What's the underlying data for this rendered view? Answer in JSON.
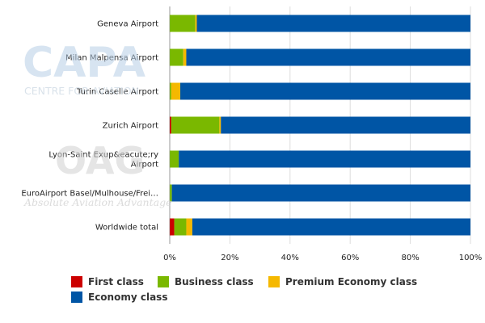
{
  "watermark": {
    "logo1": "CAPA",
    "logo1_sub": "CENTRE FOR AVIATION",
    "logo2": "OAG",
    "logo2_sub": "Absolute Aviation Advantage"
  },
  "chart_data": {
    "type": "bar",
    "orientation": "horizontal",
    "stacked": true,
    "categories": [
      "Geneva Airport",
      "Milan Malpensa Airport",
      "Turin Caselle Airport",
      "Zurich Airport",
      "Lyon-Saint Exup&eacute;ry Airport",
      "EuroAirport Basel/Mulhouse/Frei…",
      "Worldwide total"
    ],
    "category_lines": [
      [
        "Geneva Airport"
      ],
      [
        "Milan Malpensa Airport"
      ],
      [
        "Turin Caselle Airport"
      ],
      [
        "Zurich Airport"
      ],
      [
        "Lyon-Saint Exup&eacute;ry",
        "Airport"
      ],
      [
        "EuroAirport Basel/Mulhouse/Frei…"
      ],
      [
        "Worldwide total"
      ]
    ],
    "series": [
      {
        "name": "First class",
        "color": "#cc0000",
        "values": [
          0,
          0,
          0,
          0.5,
          0,
          0,
          1.5
        ]
      },
      {
        "name": "Business class",
        "color": "#7ab800",
        "values": [
          8.5,
          4.5,
          0.5,
          16.0,
          3.0,
          0.7,
          4.0
        ]
      },
      {
        "name": "Premium Economy class",
        "color": "#f5b800",
        "values": [
          0.5,
          1.0,
          3.0,
          0.5,
          0,
          0,
          2.0
        ]
      },
      {
        "name": "Economy class",
        "color": "#0055a5",
        "values": [
          91.0,
          94.5,
          96.5,
          83.0,
          97.0,
          99.3,
          92.5
        ]
      }
    ],
    "xlim": [
      0,
      100
    ],
    "xticks": [
      0,
      20,
      40,
      60,
      80,
      100
    ],
    "xtick_labels": [
      "0%",
      "20%",
      "40%",
      "60%",
      "80%",
      "100%"
    ],
    "grid": true,
    "legend_position": "bottom"
  }
}
